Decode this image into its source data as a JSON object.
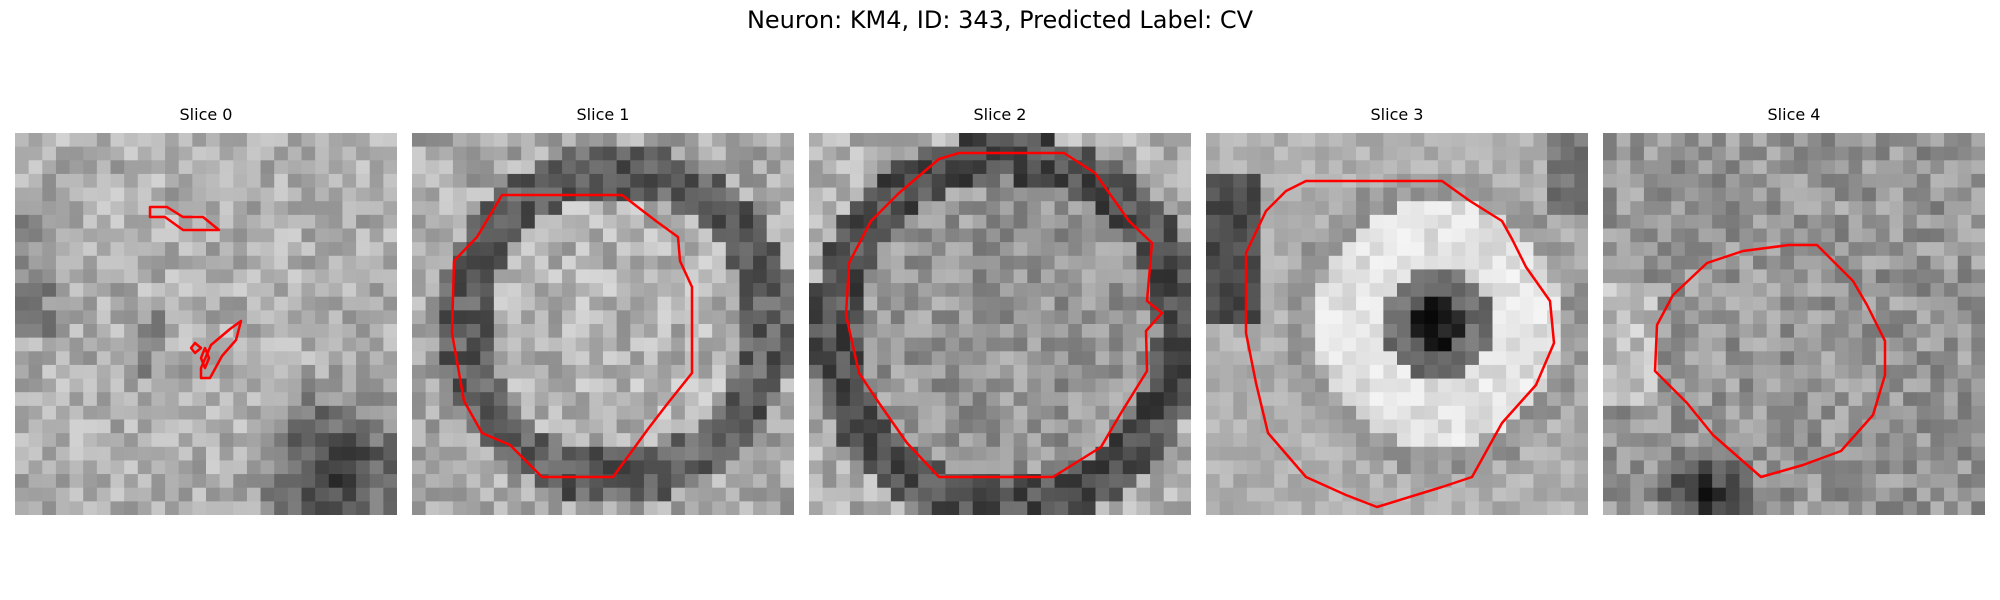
{
  "figure": {
    "title": "Neuron: KM4, ID: 343, Predicted Label: CV"
  },
  "panels": [
    {
      "title": "Slice 0"
    },
    {
      "title": "Slice 1"
    },
    {
      "title": "Slice 2"
    },
    {
      "title": "Slice 3"
    },
    {
      "title": "Slice 4"
    }
  ],
  "style": {
    "contour_color": "#ff0000",
    "colormap": "grayscale"
  }
}
